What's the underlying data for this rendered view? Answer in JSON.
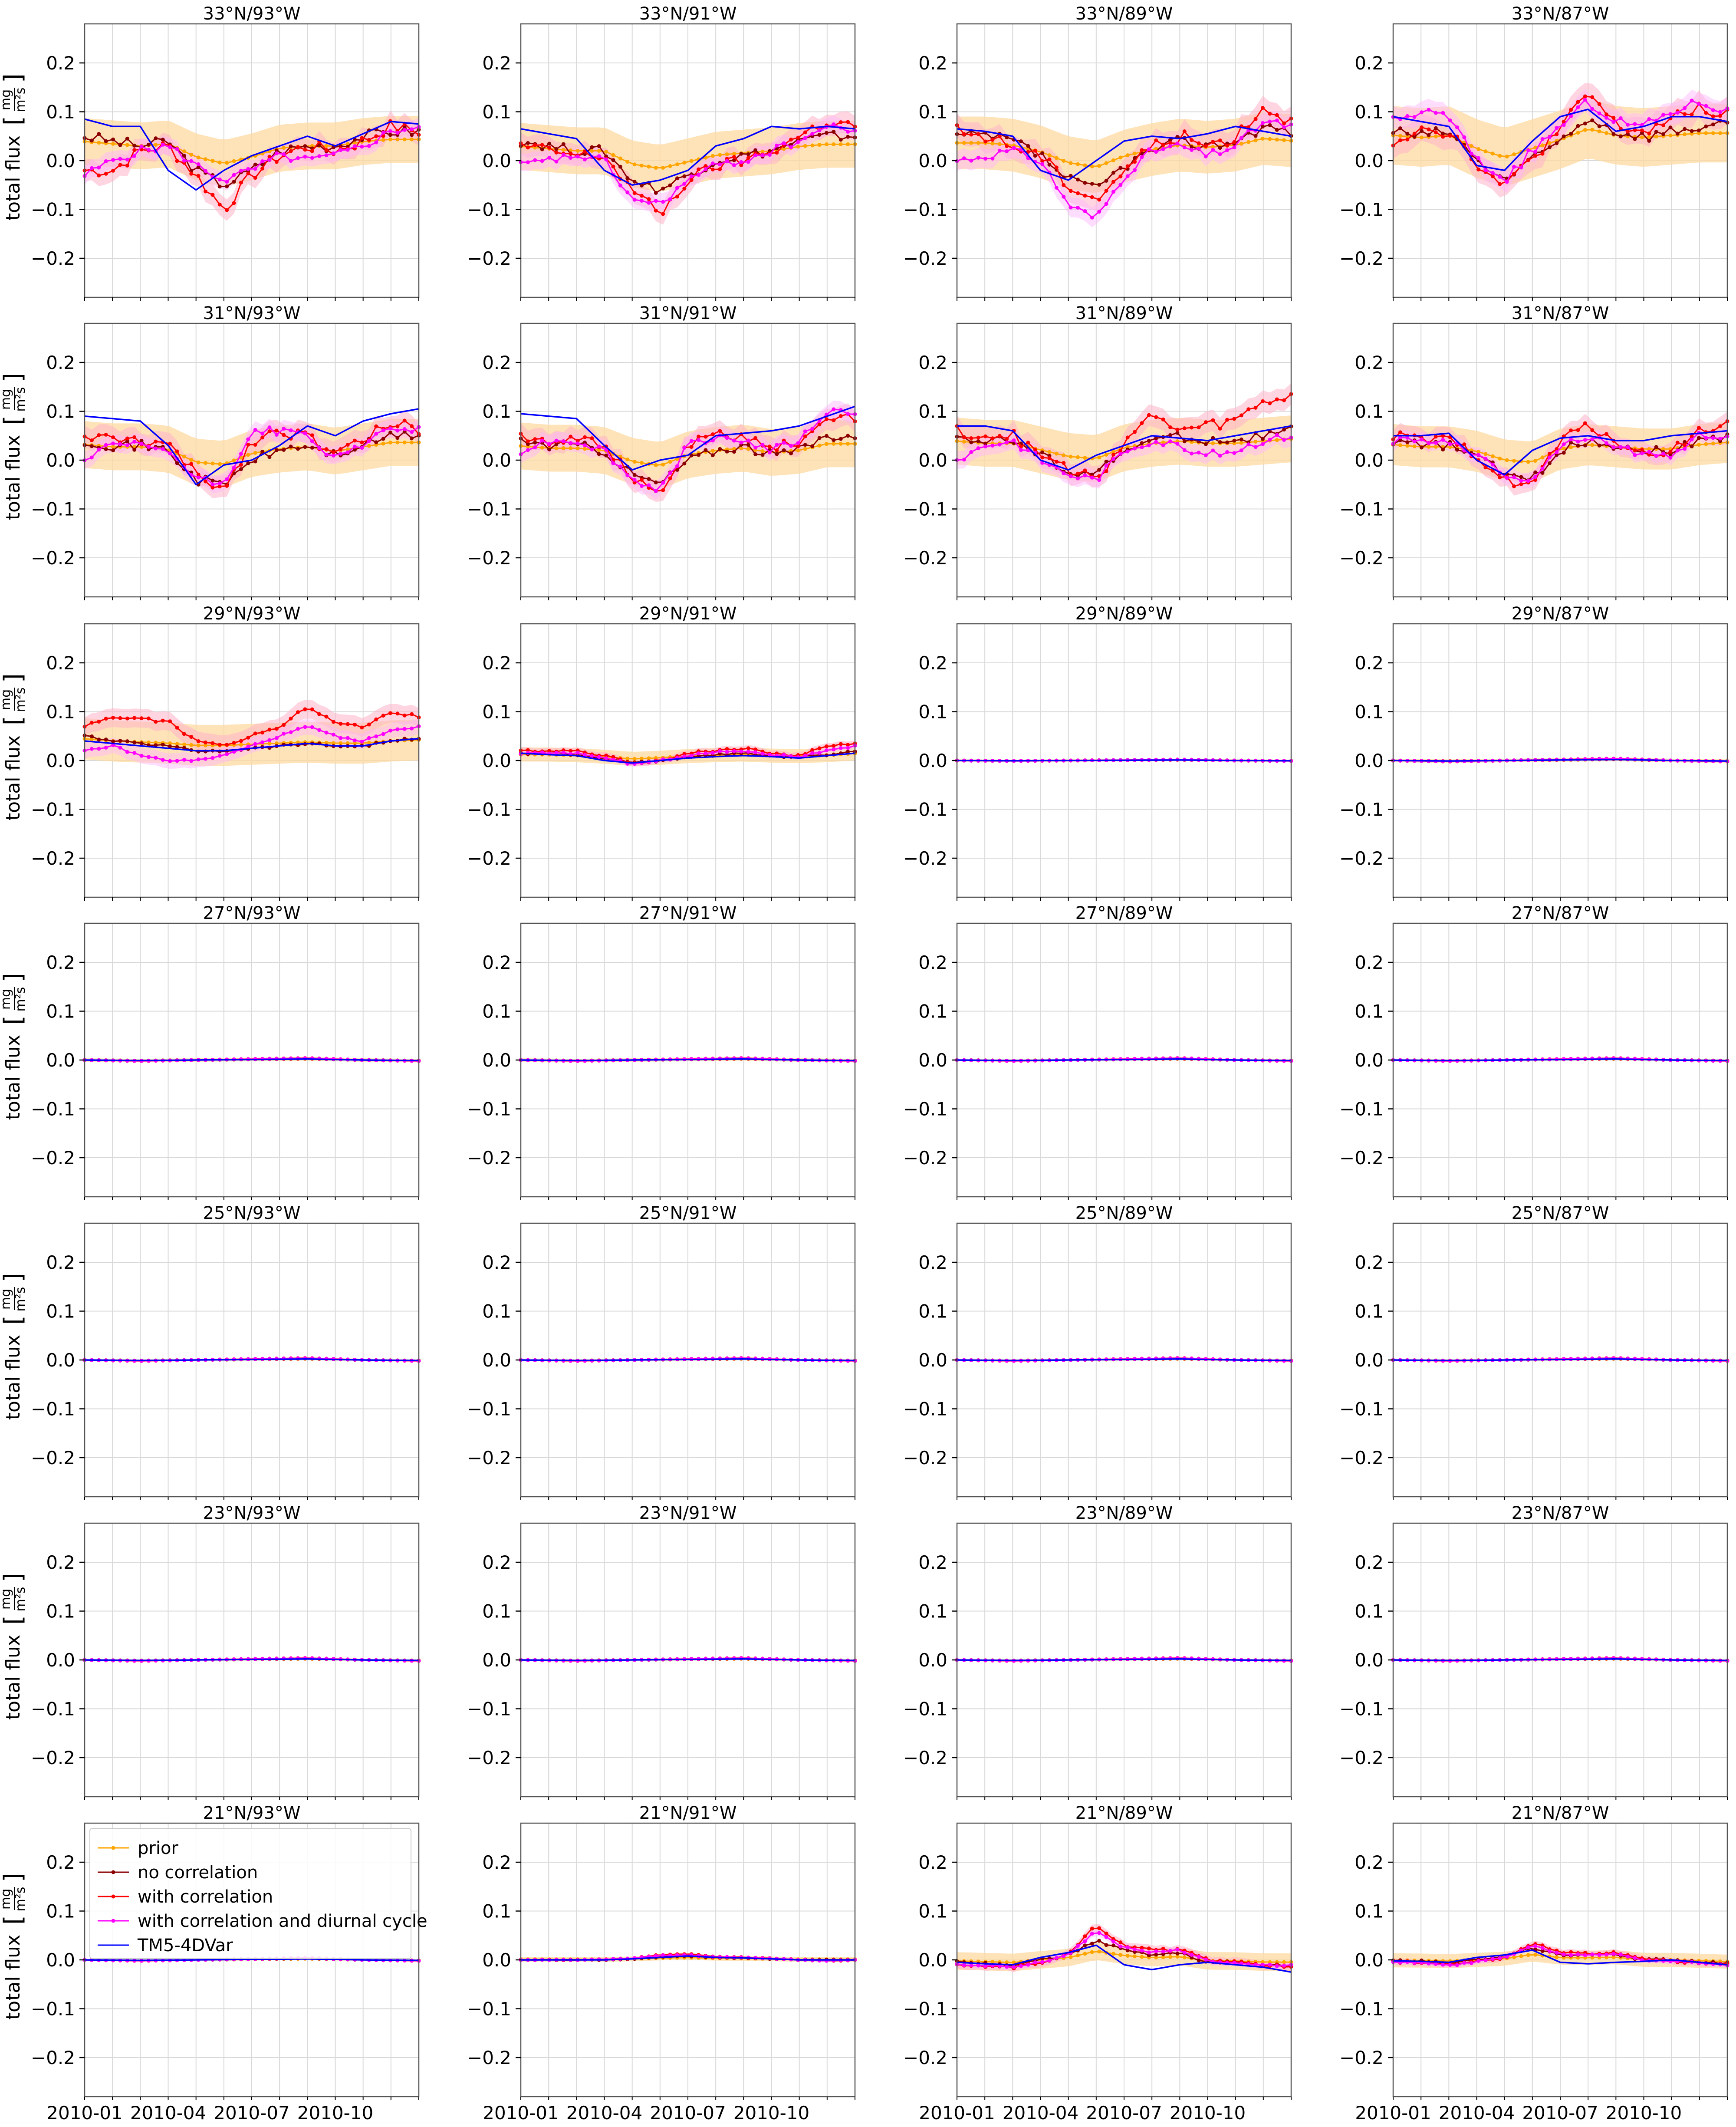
{
  "figure": {
    "ylabel": "total flux",
    "ylabel_unit_num": "mg",
    "ylabel_unit_den": "m²s",
    "xtick_labels": [
      "2010-01",
      "2010-04",
      "2010-07",
      "2010-10"
    ],
    "ytick_labels": [
      "0.2",
      "0.1",
      "0.0",
      "−0.1",
      "−0.2"
    ],
    "legend": [
      "prior",
      "no correlation",
      "with correlation",
      "with correlation and diurnal cycle",
      "TM5-4DVar"
    ],
    "colors": {
      "prior": "#ffa500",
      "no_correlation": "#8b0000",
      "with_correlation": "#ff0000",
      "diurnal": "#ff00ff",
      "tm5": "#0000ff",
      "band_prior": "#ffd9a0",
      "band_corr": "#ffb3c8",
      "band_diurnal": "#ffb3ff"
    }
  },
  "chart_data": {
    "type": "line",
    "rows": 7,
    "cols": 4,
    "ylim": [
      -0.28,
      0.28
    ],
    "yticks": [
      -0.2,
      -0.1,
      0.0,
      0.1,
      0.2
    ],
    "x_months": [
      1,
      13
    ],
    "xticks_months": [
      1,
      4,
      7,
      10
    ],
    "n_points": 48,
    "tm5_x_months": [
      1,
      2,
      3,
      4,
      5,
      6,
      7,
      8,
      9,
      10,
      11,
      12,
      13
    ],
    "series_names": [
      "prior",
      "no correlation",
      "with correlation",
      "with correlation and diurnal cycle",
      "TM5-4DVar"
    ],
    "panels": [
      {
        "title": "33°N/93°W",
        "row": 0,
        "col": 0,
        "prior": 0.03,
        "amp": 0.045,
        "spread": 0.04,
        "tm5": [
          0.085,
          0.07,
          0.07,
          -0.02,
          -0.06,
          -0.02,
          0.01,
          0.03,
          0.05,
          0.03,
          0.055,
          0.08,
          0.075
        ],
        "nocorr": [
          0.05,
          0.04,
          0.03,
          0.04,
          -0.02,
          -0.05,
          -0.02,
          0.02,
          0.03,
          0.03,
          0.05,
          0.06,
          0.06
        ],
        "corr": [
          -0.02,
          -0.02,
          0.02,
          0.03,
          -0.03,
          -0.1,
          -0.03,
          0.01,
          0.03,
          0.02,
          0.04,
          0.07,
          0.06
        ],
        "diurnal": [
          -0.03,
          0.0,
          0.02,
          0.03,
          -0.01,
          -0.04,
          -0.02,
          0.01,
          0.0,
          0.01,
          0.03,
          0.06,
          0.07
        ]
      },
      {
        "title": "33°N/91°W",
        "row": 0,
        "col": 1,
        "prior": 0.02,
        "amp": 0.04,
        "spread": 0.04,
        "tm5": [
          0.065,
          0.055,
          0.045,
          -0.02,
          -0.05,
          -0.04,
          -0.02,
          0.03,
          0.045,
          0.07,
          0.065,
          0.07,
          0.065
        ],
        "nocorr": [
          0.04,
          0.03,
          0.02,
          0.02,
          -0.04,
          -0.06,
          -0.03,
          0.0,
          0.01,
          0.02,
          0.04,
          0.05,
          0.05
        ],
        "corr": [
          0.03,
          0.02,
          0.01,
          0.01,
          -0.06,
          -0.11,
          -0.04,
          -0.01,
          0.0,
          0.02,
          0.05,
          0.08,
          0.07
        ],
        "diurnal": [
          -0.01,
          0.0,
          0.01,
          0.0,
          -0.08,
          -0.09,
          -0.04,
          -0.01,
          0.0,
          0.02,
          0.04,
          0.07,
          0.06
        ]
      },
      {
        "title": "33°N/89°W",
        "row": 0,
        "col": 2,
        "prior": 0.025,
        "amp": 0.045,
        "spread": 0.045,
        "tm5": [
          0.065,
          0.06,
          0.05,
          -0.02,
          -0.04,
          0.0,
          0.04,
          0.05,
          0.045,
          0.055,
          0.07,
          0.06,
          0.05
        ],
        "nocorr": [
          0.05,
          0.05,
          0.04,
          0.01,
          -0.04,
          -0.06,
          -0.01,
          0.02,
          0.04,
          0.03,
          0.04,
          0.07,
          0.06
        ],
        "corr": [
          0.06,
          0.05,
          0.03,
          0.01,
          -0.05,
          -0.08,
          -0.02,
          0.03,
          0.05,
          0.03,
          0.05,
          0.11,
          0.08
        ],
        "diurnal": [
          0.0,
          0.01,
          0.02,
          0.0,
          -0.09,
          -0.12,
          -0.03,
          0.02,
          0.03,
          0.01,
          0.03,
          0.08,
          0.07
        ]
      },
      {
        "title": "33°N/87°W",
        "row": 0,
        "col": 3,
        "prior": 0.045,
        "amp": 0.05,
        "spread": 0.05,
        "tm5": [
          0.09,
          0.08,
          0.07,
          -0.01,
          -0.02,
          0.04,
          0.09,
          0.105,
          0.06,
          0.07,
          0.09,
          0.09,
          0.08
        ],
        "nocorr": [
          0.06,
          0.05,
          0.06,
          0.0,
          -0.04,
          0.0,
          0.04,
          0.09,
          0.06,
          0.05,
          0.06,
          0.07,
          0.07
        ],
        "corr": [
          0.04,
          0.07,
          0.06,
          0.0,
          -0.06,
          0.01,
          0.06,
          0.14,
          0.07,
          0.06,
          0.08,
          0.11,
          0.09
        ],
        "diurnal": [
          0.08,
          0.1,
          0.09,
          0.0,
          -0.04,
          0.02,
          0.07,
          0.12,
          0.08,
          0.07,
          0.1,
          0.12,
          0.1
        ]
      },
      {
        "title": "31°N/93°W",
        "row": 1,
        "col": 0,
        "prior": 0.025,
        "amp": 0.04,
        "spread": 0.04,
        "tm5": [
          0.09,
          0.085,
          0.08,
          0.03,
          -0.05,
          -0.01,
          0.0,
          0.03,
          0.07,
          0.05,
          0.08,
          0.095,
          0.105
        ],
        "nocorr": [
          0.04,
          0.03,
          0.03,
          0.02,
          -0.04,
          -0.05,
          0.0,
          0.02,
          0.03,
          0.01,
          0.03,
          0.05,
          0.05
        ],
        "corr": [
          0.05,
          0.04,
          0.04,
          0.03,
          -0.03,
          -0.06,
          0.04,
          0.06,
          0.05,
          0.01,
          0.04,
          0.08,
          0.06
        ],
        "diurnal": [
          0.0,
          0.03,
          0.03,
          0.02,
          -0.04,
          -0.05,
          0.06,
          0.06,
          0.05,
          0.0,
          0.03,
          0.07,
          0.06
        ]
      },
      {
        "title": "31°N/91°W",
        "row": 1,
        "col": 1,
        "prior": 0.02,
        "amp": 0.04,
        "spread": 0.04,
        "tm5": [
          0.095,
          0.09,
          0.085,
          0.03,
          -0.02,
          0.0,
          0.01,
          0.05,
          0.055,
          0.06,
          0.07,
          0.09,
          0.11
        ],
        "nocorr": [
          0.04,
          0.03,
          0.03,
          0.02,
          -0.03,
          -0.05,
          0.0,
          0.02,
          0.03,
          0.01,
          0.02,
          0.05,
          0.05
        ],
        "corr": [
          0.05,
          0.04,
          0.05,
          0.03,
          -0.04,
          -0.07,
          0.03,
          0.05,
          0.05,
          0.02,
          0.04,
          0.09,
          0.08
        ],
        "diurnal": [
          0.02,
          0.04,
          0.04,
          0.02,
          -0.04,
          -0.06,
          0.03,
          0.05,
          0.04,
          0.02,
          0.04,
          0.1,
          0.1
        ]
      },
      {
        "title": "31°N/89°W",
        "row": 1,
        "col": 2,
        "prior": 0.03,
        "amp": 0.04,
        "spread": 0.04,
        "tm5": [
          0.07,
          0.07,
          0.06,
          0.0,
          -0.02,
          0.01,
          0.03,
          0.05,
          0.045,
          0.04,
          0.05,
          0.06,
          0.07
        ],
        "nocorr": [
          0.05,
          0.04,
          0.04,
          0.01,
          -0.02,
          -0.03,
          0.02,
          0.04,
          0.05,
          0.04,
          0.04,
          0.05,
          0.06
        ],
        "corr": [
          0.06,
          0.05,
          0.05,
          0.01,
          -0.02,
          -0.04,
          0.04,
          0.09,
          0.06,
          0.07,
          0.08,
          0.12,
          0.13
        ],
        "diurnal": [
          0.0,
          0.03,
          0.04,
          0.0,
          -0.03,
          -0.04,
          0.02,
          0.04,
          0.03,
          0.01,
          0.02,
          0.04,
          0.05
        ]
      },
      {
        "title": "31°N/87°W",
        "row": 1,
        "col": 3,
        "prior": 0.025,
        "amp": 0.035,
        "spread": 0.035,
        "tm5": [
          0.05,
          0.05,
          0.055,
          0.0,
          -0.03,
          0.02,
          0.045,
          0.05,
          0.04,
          0.04,
          0.05,
          0.055,
          0.06
        ],
        "nocorr": [
          0.04,
          0.03,
          0.03,
          0.01,
          -0.03,
          -0.04,
          0.02,
          0.04,
          0.03,
          0.02,
          0.02,
          0.04,
          0.05
        ],
        "corr": [
          0.05,
          0.04,
          0.04,
          0.01,
          -0.04,
          -0.05,
          0.04,
          0.07,
          0.04,
          0.01,
          0.02,
          0.06,
          0.07
        ],
        "diurnal": [
          0.04,
          0.04,
          0.04,
          0.01,
          -0.03,
          -0.04,
          0.03,
          0.05,
          0.03,
          0.01,
          0.01,
          0.05,
          0.05
        ]
      },
      {
        "title": "29°N/93°W",
        "row": 2,
        "col": 0,
        "prior": 0.04,
        "amp": 0.01,
        "spread": 0.035,
        "tm5": [
          0.04,
          0.035,
          0.03,
          0.025,
          0.02,
          0.02,
          0.025,
          0.03,
          0.035,
          0.03,
          0.03,
          0.04,
          0.045
        ],
        "nocorr": [
          0.05,
          0.04,
          0.035,
          0.03,
          0.02,
          0.02,
          0.025,
          0.03,
          0.035,
          0.03,
          0.03,
          0.04,
          0.045
        ],
        "corr": [
          0.07,
          0.09,
          0.085,
          0.08,
          0.04,
          0.03,
          0.05,
          0.07,
          0.11,
          0.08,
          0.07,
          0.1,
          0.09
        ],
        "diurnal": [
          0.02,
          0.03,
          0.01,
          0.0,
          0.0,
          0.01,
          0.03,
          0.05,
          0.07,
          0.05,
          0.04,
          0.06,
          0.07
        ]
      },
      {
        "title": "29°N/91°W",
        "row": 2,
        "col": 1,
        "prior": 0.01,
        "amp": 0.008,
        "spread": 0.012,
        "tm5": [
          0.015,
          0.012,
          0.01,
          0.0,
          -0.005,
          0.0,
          0.005,
          0.008,
          0.01,
          0.008,
          0.005,
          0.01,
          0.015
        ],
        "nocorr": [
          0.015,
          0.015,
          0.012,
          0.005,
          -0.005,
          0.0,
          0.008,
          0.012,
          0.015,
          0.01,
          0.008,
          0.012,
          0.02
        ],
        "corr": [
          0.02,
          0.02,
          0.02,
          0.01,
          -0.005,
          0.0,
          0.015,
          0.02,
          0.025,
          0.015,
          0.01,
          0.03,
          0.035
        ],
        "diurnal": [
          0.015,
          0.015,
          0.015,
          0.005,
          -0.008,
          0.0,
          0.01,
          0.018,
          0.02,
          0.012,
          0.008,
          0.02,
          0.03
        ]
      },
      {
        "title": "29°N/89°W",
        "row": 2,
        "col": 2,
        "prior": 0.0,
        "amp": 0.001,
        "spread": 0.002,
        "flat": true
      },
      {
        "title": "29°N/87°W",
        "row": 2,
        "col": 3,
        "prior": 0.0,
        "amp": 0.002,
        "spread": 0.003,
        "flat": true
      },
      {
        "title": "27°N/93°W",
        "row": 3,
        "col": 0,
        "prior": 0.0,
        "amp": 0.002,
        "spread": 0.003,
        "flat": true
      },
      {
        "title": "27°N/91°W",
        "row": 3,
        "col": 1,
        "prior": 0.0,
        "amp": 0.002,
        "spread": 0.003,
        "flat": true
      },
      {
        "title": "27°N/89°W",
        "row": 3,
        "col": 2,
        "prior": 0.0,
        "amp": 0.002,
        "spread": 0.002,
        "flat": true
      },
      {
        "title": "27°N/87°W",
        "row": 3,
        "col": 3,
        "prior": 0.0,
        "amp": 0.002,
        "spread": 0.002,
        "flat": true
      },
      {
        "title": "25°N/93°W",
        "row": 4,
        "col": 0,
        "prior": 0.0,
        "amp": 0.002,
        "spread": 0.002,
        "flat": true
      },
      {
        "title": "25°N/91°W",
        "row": 4,
        "col": 1,
        "prior": 0.0,
        "amp": 0.002,
        "spread": 0.002,
        "flat": true
      },
      {
        "title": "25°N/89°W",
        "row": 4,
        "col": 2,
        "prior": 0.0,
        "amp": 0.002,
        "spread": 0.002,
        "flat": true
      },
      {
        "title": "25°N/87°W",
        "row": 4,
        "col": 3,
        "prior": 0.0,
        "amp": 0.002,
        "spread": 0.002,
        "flat": true
      },
      {
        "title": "23°N/93°W",
        "row": 5,
        "col": 0,
        "prior": 0.0,
        "amp": 0.002,
        "spread": 0.002,
        "flat": true
      },
      {
        "title": "23°N/91°W",
        "row": 5,
        "col": 1,
        "prior": 0.0,
        "amp": 0.002,
        "spread": 0.002,
        "flat": true
      },
      {
        "title": "23°N/89°W",
        "row": 5,
        "col": 2,
        "prior": 0.0,
        "amp": 0.002,
        "spread": 0.002,
        "flat": true
      },
      {
        "title": "23°N/87°W",
        "row": 5,
        "col": 3,
        "prior": 0.0,
        "amp": 0.002,
        "spread": 0.002,
        "flat": true
      },
      {
        "title": "21°N/93°W",
        "row": 6,
        "col": 0,
        "prior": 0.0,
        "amp": 0.002,
        "spread": 0.002,
        "flat": true,
        "legend": true
      },
      {
        "title": "21°N/91°W",
        "row": 6,
        "col": 1,
        "prior": 0.002,
        "amp": 0.002,
        "spread": 0.004,
        "tm5": [
          0.0,
          0.0,
          0.0,
          0.0,
          0.002,
          0.005,
          0.008,
          0.005,
          0.004,
          0.002,
          0.0,
          0.0,
          0.0
        ],
        "nocorr": [
          0.0,
          0.0,
          0.0,
          0.0,
          0.002,
          0.006,
          0.008,
          0.005,
          0.004,
          0.002,
          0.0,
          0.0,
          0.0
        ],
        "corr": [
          0.0,
          0.0,
          0.0,
          0.001,
          0.003,
          0.01,
          0.012,
          0.006,
          0.005,
          0.003,
          0.0,
          -0.002,
          0.0
        ],
        "diurnal": [
          0.0,
          0.0,
          0.0,
          0.001,
          0.003,
          0.009,
          0.01,
          0.006,
          0.005,
          0.003,
          0.0,
          -0.002,
          0.0
        ]
      },
      {
        "title": "21°N/89°W",
        "row": 6,
        "col": 2,
        "prior": 0.0,
        "amp": 0.01,
        "spread": 0.015,
        "tm5": [
          -0.005,
          -0.008,
          -0.01,
          0.005,
          0.015,
          0.03,
          -0.01,
          -0.02,
          -0.01,
          -0.005,
          -0.01,
          -0.015,
          -0.025
        ],
        "nocorr": [
          -0.005,
          -0.008,
          -0.012,
          0.0,
          0.01,
          0.04,
          0.02,
          0.01,
          0.015,
          -0.005,
          -0.005,
          -0.01,
          -0.01
        ],
        "corr": [
          -0.01,
          -0.012,
          -0.015,
          -0.005,
          0.01,
          0.07,
          0.03,
          0.02,
          0.02,
          0.0,
          -0.005,
          -0.01,
          -0.015
        ],
        "diurnal": [
          -0.01,
          -0.012,
          -0.015,
          -0.005,
          0.01,
          0.06,
          0.025,
          0.015,
          0.02,
          -0.002,
          -0.005,
          -0.01,
          -0.012
        ]
      },
      {
        "title": "21°N/87°W",
        "row": 6,
        "col": 3,
        "prior": 0.0,
        "amp": 0.008,
        "spread": 0.012,
        "tm5": [
          -0.002,
          -0.003,
          -0.005,
          0.005,
          0.01,
          0.02,
          -0.005,
          -0.008,
          -0.005,
          -0.003,
          0.0,
          -0.005,
          -0.01
        ],
        "nocorr": [
          -0.002,
          -0.003,
          -0.006,
          0.0,
          0.005,
          0.025,
          0.01,
          0.01,
          0.012,
          0.0,
          0.0,
          -0.004,
          -0.008
        ],
        "corr": [
          -0.004,
          -0.006,
          -0.01,
          -0.004,
          0.005,
          0.035,
          0.015,
          0.012,
          0.015,
          0.0,
          -0.002,
          -0.006,
          -0.01
        ],
        "diurnal": [
          -0.004,
          -0.006,
          -0.012,
          -0.004,
          0.005,
          0.03,
          0.012,
          0.01,
          0.013,
          0.0,
          -0.002,
          -0.006,
          -0.01
        ]
      }
    ]
  }
}
